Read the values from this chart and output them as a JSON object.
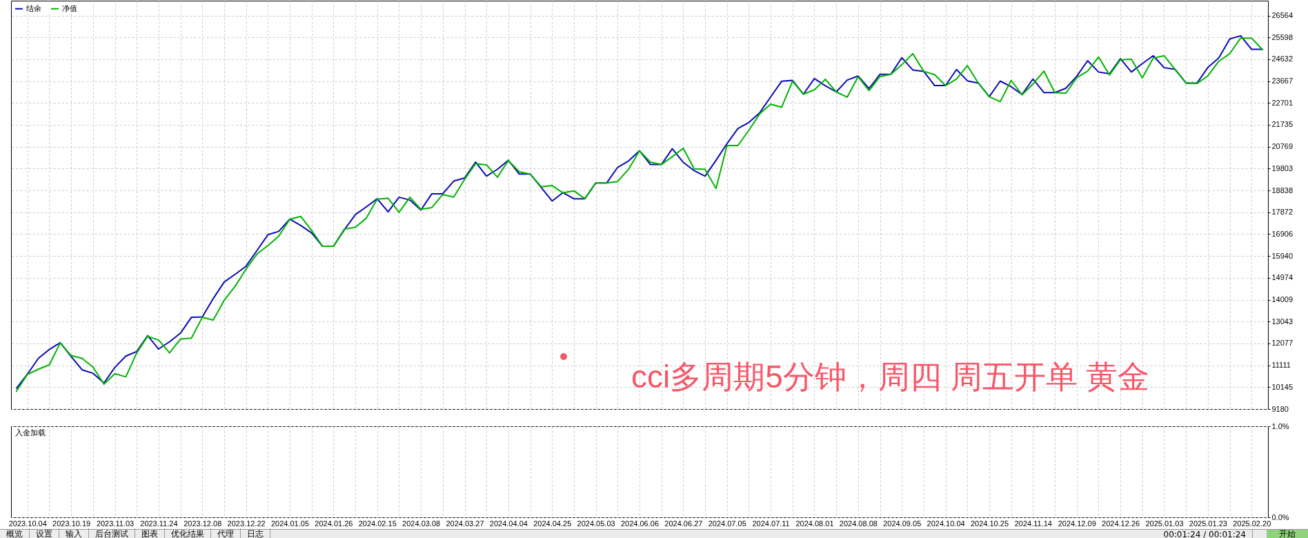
{
  "chart_data": [
    {
      "type": "line",
      "legend": "top left",
      "grid": true,
      "tick_labels": "y",
      "annotations": [
        "cci多周期5分钟，周四 周五开单 黄金",
        "概览",
        "设置",
        "输入",
        "后台测试",
        "图表",
        "优化结果",
        "代理",
        "日志",
        "00:01:24 / 00:01:24",
        "开始"
      ],
      "categories": [
        null,
        "2023.10.04",
        null,
        null,
        null,
        "2023.10.19",
        null,
        null,
        null,
        "2023.11.03",
        null,
        null,
        null,
        "2023.11.24",
        null,
        null,
        null,
        "2023.12.08",
        null,
        null,
        null,
        "2023.12.22",
        null,
        null,
        null,
        "2024.01.05",
        null,
        null,
        null,
        "2024.01.26",
        null,
        null,
        null,
        "2024.02.15",
        null,
        null,
        null,
        "2024.03.08",
        null,
        null,
        null,
        "2024.03.27",
        null,
        null,
        null,
        "2024.04.04",
        null,
        null,
        null,
        "2024.04.25",
        null,
        null,
        null,
        "2024.05.03",
        null,
        null,
        null,
        "2024.06.06",
        null,
        null,
        null,
        "2024.06.27",
        null,
        null,
        null,
        "2024.07.05",
        null,
        null,
        null,
        "2024.07.11",
        null,
        null,
        null,
        "2024.08.01",
        null,
        null,
        null,
        "2024.08.08",
        null,
        null,
        null,
        "2024.09.05",
        null,
        null,
        null,
        "2024.10.04",
        null,
        null,
        null,
        "2024.10.25",
        null,
        null,
        null,
        "2024.11.14",
        null,
        null,
        null,
        "2024.12.09",
        null,
        null,
        null,
        "2024.12.26",
        null,
        null,
        null,
        "2025.01.03",
        null,
        null,
        null,
        "2025.01.23",
        null,
        null,
        null,
        "2025.02.20",
        null
      ],
      "ylim": [
        9180,
        27220
      ],
      "yticks": [
        9180,
        10145,
        11111,
        12077,
        13043,
        14009,
        14974,
        15940,
        16906,
        17872,
        18838,
        19803,
        20769,
        21735,
        22701,
        23667,
        24632,
        25598,
        26564
      ],
      "series": [
        {
          "name": "结余",
          "color": "#0a0ab4",
          "values": [
            10100,
            10720,
            11420,
            11810,
            12110,
            11500,
            10910,
            10760,
            10330,
            11020,
            11520,
            11720,
            12420,
            11830,
            12150,
            12530,
            13230,
            13250,
            14060,
            14790,
            15130,
            15490,
            16180,
            16880,
            17030,
            17570,
            17290,
            16960,
            16370,
            16370,
            17100,
            17770,
            18110,
            18470,
            17890,
            18540,
            18410,
            17970,
            18690,
            18690,
            19250,
            19390,
            20090,
            19470,
            19770,
            20170,
            19560,
            19560,
            18970,
            18370,
            18740,
            18470,
            18470,
            19170,
            19170,
            19860,
            20140,
            20590,
            19980,
            19980,
            20680,
            20080,
            19710,
            19470,
            20170,
            20900,
            21570,
            21840,
            22270,
            22970,
            23660,
            23700,
            23090,
            23780,
            23460,
            23190,
            23710,
            23890,
            23340,
            23970,
            23970,
            24700,
            24160,
            24100,
            23470,
            23470,
            24180,
            23680,
            23580,
            22980,
            23670,
            23420,
            23080,
            23760,
            23160,
            23160,
            23350,
            23880,
            24570,
            24070,
            23990,
            24660,
            24070,
            24440,
            24790,
            24260,
            24190,
            23580,
            23580,
            24270,
            24690,
            25530,
            25670,
            25070,
            25070
          ]
        },
        {
          "name": "净值",
          "color": "#00b400",
          "values": [
            9970,
            10710,
            10940,
            11130,
            12100,
            11540,
            11420,
            11030,
            10280,
            10740,
            10600,
            11660,
            12390,
            12230,
            11660,
            12270,
            12310,
            13230,
            13110,
            13980,
            14600,
            15360,
            16030,
            16400,
            16820,
            17560,
            17690,
            17070,
            16370,
            16370,
            17130,
            17210,
            17610,
            18450,
            18490,
            17870,
            18540,
            18000,
            18080,
            18660,
            18540,
            19330,
            20020,
            19970,
            19420,
            20160,
            19660,
            19560,
            19000,
            19050,
            18730,
            18820,
            18470,
            19170,
            19170,
            19230,
            19780,
            20590,
            20090,
            19980,
            20330,
            20700,
            19790,
            19770,
            18920,
            20820,
            20820,
            21490,
            22220,
            22650,
            22510,
            23660,
            23090,
            23280,
            23750,
            23190,
            22960,
            23860,
            23250,
            23870,
            23970,
            24390,
            24880,
            24100,
            23950,
            23470,
            23760,
            24350,
            23580,
            22980,
            22760,
            23700,
            23060,
            23540,
            24110,
            23160,
            23130,
            23820,
            24110,
            24730,
            23940,
            24610,
            24640,
            23810,
            24680,
            24790,
            24180,
            23580,
            23560,
            23900,
            24540,
            24880,
            25570,
            25570,
            25050
          ]
        }
      ]
    },
    {
      "type": "line",
      "title": "入金加载",
      "grid": true,
      "categories": [
        null,
        "2023.10.04",
        null,
        null,
        null,
        "2023.10.19",
        null,
        null,
        null,
        "2023.11.03",
        null,
        null,
        null,
        "2023.11.24",
        null,
        null,
        null,
        "2023.12.08",
        null,
        null,
        null,
        "2023.12.22",
        null,
        null,
        null,
        "2024.01.05",
        null,
        null,
        null,
        "2024.01.26",
        null,
        null,
        null,
        "2024.02.15",
        null,
        null,
        null,
        "2024.03.08",
        null,
        null,
        null,
        "2024.03.27",
        null,
        null,
        null,
        "2024.04.04",
        null,
        null,
        null,
        "2024.04.25",
        null,
        null,
        null,
        "2024.05.03",
        null,
        null,
        null,
        "2024.06.06",
        null,
        null,
        null,
        "2024.06.27",
        null,
        null,
        null,
        "2024.07.05",
        null,
        null,
        null,
        "2024.07.11",
        null,
        null,
        null,
        "2024.08.01",
        null,
        null,
        null,
        "2024.08.08",
        null,
        null,
        null,
        "2024.09.05",
        null,
        null,
        null,
        "2024.10.04",
        null,
        null,
        null,
        "2024.10.25",
        null,
        null,
        null,
        "2024.11.14",
        null,
        null,
        null,
        "2024.12.09",
        null,
        null,
        null,
        "2024.12.26",
        null,
        null,
        null,
        "2025.01.03",
        null,
        null,
        null,
        "2025.01.23",
        null,
        null,
        null,
        "2025.02.20",
        null
      ],
      "ylim": [
        0,
        1
      ],
      "yticks": [
        {
          "value": 0,
          "label": "0.0%"
        },
        {
          "value": 1,
          "label": "1.0%"
        }
      ],
      "values": [
        null,
        null,
        null,
        null,
        null,
        null,
        null,
        null,
        null,
        null,
        null,
        null,
        null,
        null,
        null,
        null,
        null,
        null,
        null,
        null,
        null,
        null,
        null,
        null,
        null,
        null,
        null,
        null,
        null,
        null,
        null,
        null,
        null,
        null,
        null,
        null,
        null,
        null,
        null,
        null,
        null,
        null,
        null,
        null,
        null,
        null,
        null,
        null,
        null,
        null,
        null,
        null,
        null,
        null,
        null,
        null,
        null,
        null,
        null,
        null,
        null,
        null,
        null,
        null,
        null,
        null,
        null,
        null,
        null,
        null,
        null,
        null,
        null,
        null,
        null,
        null,
        null,
        null,
        null,
        null,
        null,
        null,
        null,
        null,
        null,
        null,
        null,
        null,
        null,
        null,
        null,
        null,
        null,
        null,
        null,
        null,
        null,
        null,
        null,
        null,
        null,
        null,
        null,
        null,
        null,
        null,
        null,
        null,
        null,
        null,
        null,
        null,
        null,
        null,
        null
      ]
    }
  ]
}
